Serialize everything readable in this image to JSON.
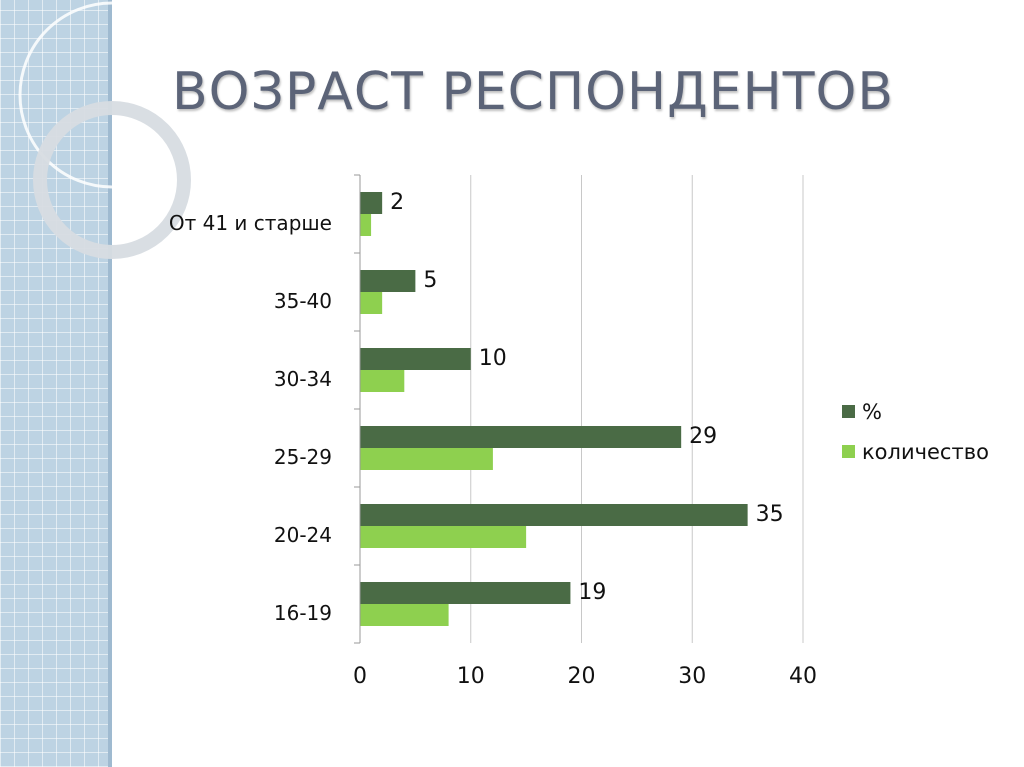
{
  "slide": {
    "title": "ВОЗРАСТ РЕСПОНДЕНТОВ"
  },
  "chart_data": {
    "type": "bar",
    "orientation": "horizontal",
    "categories": [
      "16-19",
      "20-24",
      "25-29",
      "30-34",
      "35-40",
      "От 41 и старше"
    ],
    "series": [
      {
        "name": "%",
        "values": [
          19,
          35,
          29,
          10,
          5,
          2
        ],
        "color": "#4a6b45",
        "show_labels": true
      },
      {
        "name": "количество",
        "values": [
          8,
          15,
          12,
          4,
          2,
          1
        ],
        "color": "#8ed04f",
        "show_labels": false
      }
    ],
    "xlim": [
      0,
      40
    ],
    "xticks": [
      0,
      10,
      20,
      30,
      40
    ],
    "grid": "vertical",
    "legend": "right"
  }
}
